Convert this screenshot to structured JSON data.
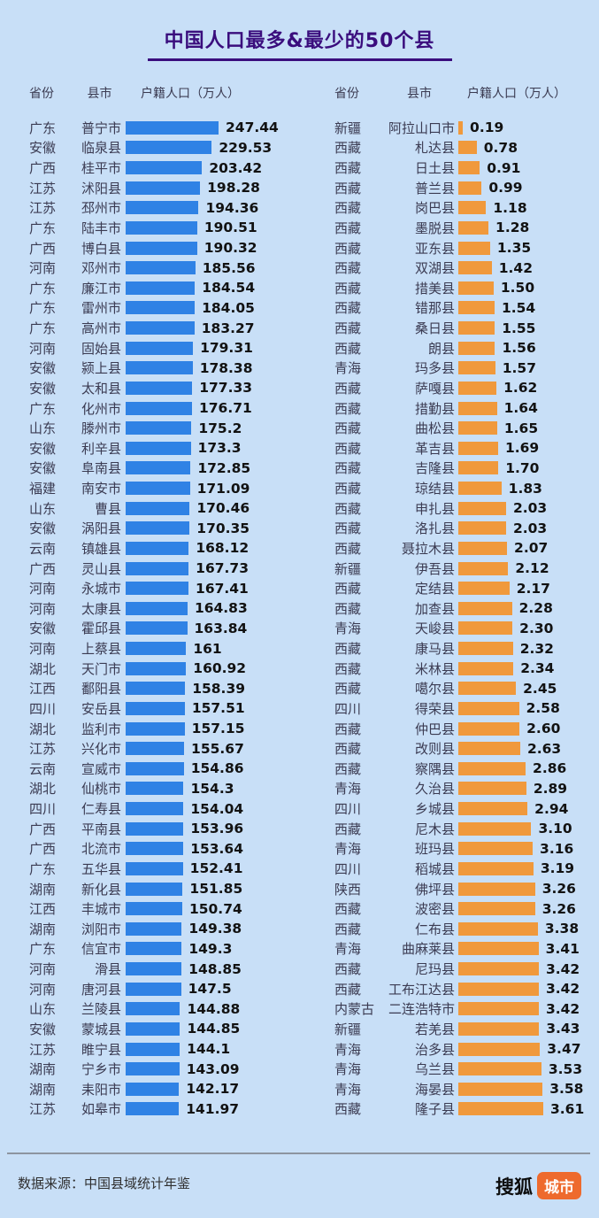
{
  "page": {
    "background": "#c8dff7"
  },
  "title": {
    "text": "中国人口最多&最少的50个县",
    "color": "#3a0d7d"
  },
  "table_headers": {
    "province": "省份",
    "county": "县市",
    "population": "户籍人口（万人）"
  },
  "footer": {
    "source": "数据来源：中国县域统计年鉴",
    "brand": "搜狐",
    "brand_badge": "城市",
    "badge_color": "#ee6a2d"
  },
  "chart_data": [
    {
      "type": "bar",
      "orientation": "horizontal",
      "position": "left",
      "series_id": "most-populous-50-counties",
      "bar_color": "#2f82e5",
      "unit": "万人",
      "xlim": [
        0,
        247.44
      ],
      "columns": [
        "省份",
        "县市",
        "户籍人口（万人）"
      ],
      "rows": [
        {
          "province": "广东",
          "county": "普宁市",
          "value": "247.44"
        },
        {
          "province": "安徽",
          "county": "临泉县",
          "value": "229.53"
        },
        {
          "province": "广西",
          "county": "桂平市",
          "value": "203.42"
        },
        {
          "province": "江苏",
          "county": "沭阳县",
          "value": "198.28"
        },
        {
          "province": "江苏",
          "county": "邳州市",
          "value": "194.36"
        },
        {
          "province": "广东",
          "county": "陆丰市",
          "value": "190.51"
        },
        {
          "province": "广西",
          "county": "博白县",
          "value": "190.32"
        },
        {
          "province": "河南",
          "county": "邓州市",
          "value": "185.56"
        },
        {
          "province": "广东",
          "county": "廉江市",
          "value": "184.54"
        },
        {
          "province": "广东",
          "county": "雷州市",
          "value": "184.05"
        },
        {
          "province": "广东",
          "county": "高州市",
          "value": "183.27"
        },
        {
          "province": "河南",
          "county": "固始县",
          "value": "179.31"
        },
        {
          "province": "安徽",
          "county": "颍上县",
          "value": "178.38"
        },
        {
          "province": "安徽",
          "county": "太和县",
          "value": "177.33"
        },
        {
          "province": "广东",
          "county": "化州市",
          "value": "176.71"
        },
        {
          "province": "山东",
          "county": "滕州市",
          "value": "175.2"
        },
        {
          "province": "安徽",
          "county": "利辛县",
          "value": "173.3"
        },
        {
          "province": "安徽",
          "county": "阜南县",
          "value": "172.85"
        },
        {
          "province": "福建",
          "county": "南安市",
          "value": "171.09"
        },
        {
          "province": "山东",
          "county": "曹县",
          "value": "170.46"
        },
        {
          "province": "安徽",
          "county": "涡阳县",
          "value": "170.35"
        },
        {
          "province": "云南",
          "county": "镇雄县",
          "value": "168.12"
        },
        {
          "province": "广西",
          "county": "灵山县",
          "value": "167.73"
        },
        {
          "province": "河南",
          "county": "永城市",
          "value": "167.41"
        },
        {
          "province": "河南",
          "county": "太康县",
          "value": "164.83"
        },
        {
          "province": "安徽",
          "county": "霍邱县",
          "value": "163.84"
        },
        {
          "province": "河南",
          "county": "上蔡县",
          "value": "161"
        },
        {
          "province": "湖北",
          "county": "天门市",
          "value": "160.92"
        },
        {
          "province": "江西",
          "county": "鄱阳县",
          "value": "158.39"
        },
        {
          "province": "四川",
          "county": "安岳县",
          "value": "157.51"
        },
        {
          "province": "湖北",
          "county": "监利市",
          "value": "157.15"
        },
        {
          "province": "江苏",
          "county": "兴化市",
          "value": "155.67"
        },
        {
          "province": "云南",
          "county": "宣威市",
          "value": "154.86"
        },
        {
          "province": "湖北",
          "county": "仙桃市",
          "value": "154.3"
        },
        {
          "province": "四川",
          "county": "仁寿县",
          "value": "154.04"
        },
        {
          "province": "广西",
          "county": "平南县",
          "value": "153.96"
        },
        {
          "province": "广西",
          "county": "北流市",
          "value": "153.64"
        },
        {
          "province": "广东",
          "county": "五华县",
          "value": "152.41"
        },
        {
          "province": "湖南",
          "county": "新化县",
          "value": "151.85"
        },
        {
          "province": "江西",
          "county": "丰城市",
          "value": "150.74"
        },
        {
          "province": "湖南",
          "county": "浏阳市",
          "value": "149.38"
        },
        {
          "province": "广东",
          "county": "信宜市",
          "value": "149.3"
        },
        {
          "province": "河南",
          "county": "滑县",
          "value": "148.85"
        },
        {
          "province": "河南",
          "county": "唐河县",
          "value": "147.5"
        },
        {
          "province": "山东",
          "county": "兰陵县",
          "value": "144.88"
        },
        {
          "province": "安徽",
          "county": "蒙城县",
          "value": "144.85"
        },
        {
          "province": "江苏",
          "county": "睢宁县",
          "value": "144.1"
        },
        {
          "province": "湖南",
          "county": "宁乡市",
          "value": "143.09"
        },
        {
          "province": "湖南",
          "county": "耒阳市",
          "value": "142.17"
        },
        {
          "province": "江苏",
          "county": "如皋市",
          "value": "141.97"
        }
      ]
    },
    {
      "type": "bar",
      "orientation": "horizontal",
      "position": "right",
      "series_id": "least-populous-50-counties",
      "bar_color": "#f0993c",
      "unit": "万人",
      "xlim": [
        0,
        3.61
      ],
      "columns": [
        "省份",
        "县市",
        "户籍人口（万人）"
      ],
      "rows": [
        {
          "province": "新疆",
          "county": "阿拉山口市",
          "value": "0.19"
        },
        {
          "province": "西藏",
          "county": "札达县",
          "value": "0.78"
        },
        {
          "province": "西藏",
          "county": "日土县",
          "value": "0.91"
        },
        {
          "province": "西藏",
          "county": "普兰县",
          "value": "0.99"
        },
        {
          "province": "西藏",
          "county": "岗巴县",
          "value": "1.18"
        },
        {
          "province": "西藏",
          "county": "墨脱县",
          "value": "1.28"
        },
        {
          "province": "西藏",
          "county": "亚东县",
          "value": "1.35"
        },
        {
          "province": "西藏",
          "county": "双湖县",
          "value": "1.42"
        },
        {
          "province": "西藏",
          "county": "措美县",
          "value": "1.50"
        },
        {
          "province": "西藏",
          "county": "错那县",
          "value": "1.54"
        },
        {
          "province": "西藏",
          "county": "桑日县",
          "value": "1.55"
        },
        {
          "province": "西藏",
          "county": "朗县",
          "value": "1.56"
        },
        {
          "province": "青海",
          "county": "玛多县",
          "value": "1.57"
        },
        {
          "province": "西藏",
          "county": "萨嘎县",
          "value": "1.62"
        },
        {
          "province": "西藏",
          "county": "措勤县",
          "value": "1.64"
        },
        {
          "province": "西藏",
          "county": "曲松县",
          "value": "1.65"
        },
        {
          "province": "西藏",
          "county": "革吉县",
          "value": "1.69"
        },
        {
          "province": "西藏",
          "county": "吉隆县",
          "value": "1.70"
        },
        {
          "province": "西藏",
          "county": "琼结县",
          "value": "1.83"
        },
        {
          "province": "西藏",
          "county": "申扎县",
          "value": "2.03"
        },
        {
          "province": "西藏",
          "county": "洛扎县",
          "value": "2.03"
        },
        {
          "province": "西藏",
          "county": "聂拉木县",
          "value": "2.07"
        },
        {
          "province": "新疆",
          "county": "伊吾县",
          "value": "2.12"
        },
        {
          "province": "西藏",
          "county": "定结县",
          "value": "2.17"
        },
        {
          "province": "西藏",
          "county": "加查县",
          "value": "2.28"
        },
        {
          "province": "青海",
          "county": "天峻县",
          "value": "2.30"
        },
        {
          "province": "西藏",
          "county": "康马县",
          "value": "2.32"
        },
        {
          "province": "西藏",
          "county": "米林县",
          "value": "2.34"
        },
        {
          "province": "西藏",
          "county": "噶尔县",
          "value": "2.45"
        },
        {
          "province": "四川",
          "county": "得荣县",
          "value": "2.58"
        },
        {
          "province": "西藏",
          "county": "仲巴县",
          "value": "2.60"
        },
        {
          "province": "西藏",
          "county": "改则县",
          "value": "2.63"
        },
        {
          "province": "西藏",
          "county": "察隅县",
          "value": "2.86"
        },
        {
          "province": "青海",
          "county": "久治县",
          "value": "2.89"
        },
        {
          "province": "四川",
          "county": "乡城县",
          "value": "2.94"
        },
        {
          "province": "西藏",
          "county": "尼木县",
          "value": "3.10"
        },
        {
          "province": "青海",
          "county": "班玛县",
          "value": "3.16"
        },
        {
          "province": "四川",
          "county": "稻城县",
          "value": "3.19"
        },
        {
          "province": "陕西",
          "county": "佛坪县",
          "value": "3.26"
        },
        {
          "province": "西藏",
          "county": "波密县",
          "value": "3.26"
        },
        {
          "province": "西藏",
          "county": "仁布县",
          "value": "3.38"
        },
        {
          "province": "青海",
          "county": "曲麻莱县",
          "value": "3.41"
        },
        {
          "province": "西藏",
          "county": "尼玛县",
          "value": "3.42"
        },
        {
          "province": "西藏",
          "county": "工布江达县",
          "value": "3.42"
        },
        {
          "province": "内蒙古",
          "county": "二连浩特市",
          "value": "3.42"
        },
        {
          "province": "新疆",
          "county": "若羌县",
          "value": "3.43"
        },
        {
          "province": "青海",
          "county": "治多县",
          "value": "3.47"
        },
        {
          "province": "青海",
          "county": "乌兰县",
          "value": "3.53"
        },
        {
          "province": "青海",
          "county": "海晏县",
          "value": "3.58"
        },
        {
          "province": "西藏",
          "county": "隆子县",
          "value": "3.61"
        }
      ]
    }
  ]
}
